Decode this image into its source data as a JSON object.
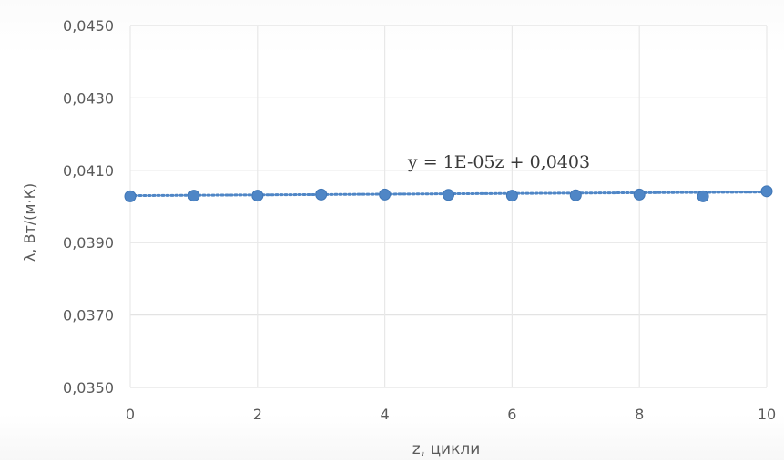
{
  "chart_data": {
    "type": "scatter",
    "title": "",
    "xlabel": "z, цикли",
    "ylabel": "λ, Вт/(м·К)",
    "xlim": [
      0,
      10
    ],
    "ylim": [
      0.035,
      0.045
    ],
    "x_ticks": [
      0,
      2,
      4,
      6,
      8,
      10
    ],
    "x_tick_labels": [
      "0",
      "2",
      "4",
      "6",
      "8",
      "10"
    ],
    "y_ticks": [
      0.035,
      0.037,
      0.039,
      0.041,
      0.043,
      0.045
    ],
    "y_tick_labels": [
      "0,0350",
      "0,0370",
      "0,0390",
      "0,0410",
      "0,0430",
      "0,0450"
    ],
    "grid": true,
    "series": [
      {
        "x": [
          0,
          1,
          2,
          3,
          4,
          5,
          6,
          7,
          8,
          9,
          10
        ],
        "y": [
          0.04028,
          0.0403,
          0.0403,
          0.04033,
          0.04033,
          0.04032,
          0.0403,
          0.04031,
          0.04033,
          0.04028,
          0.04042
        ],
        "color": "#4f86c6"
      }
    ],
    "trendline": {
      "type": "linear",
      "slope": 1e-05,
      "intercept": 0.0403,
      "equation": "y = 1E-05z + 0,0403",
      "color": "#4f86c6",
      "style": "dotted"
    }
  }
}
